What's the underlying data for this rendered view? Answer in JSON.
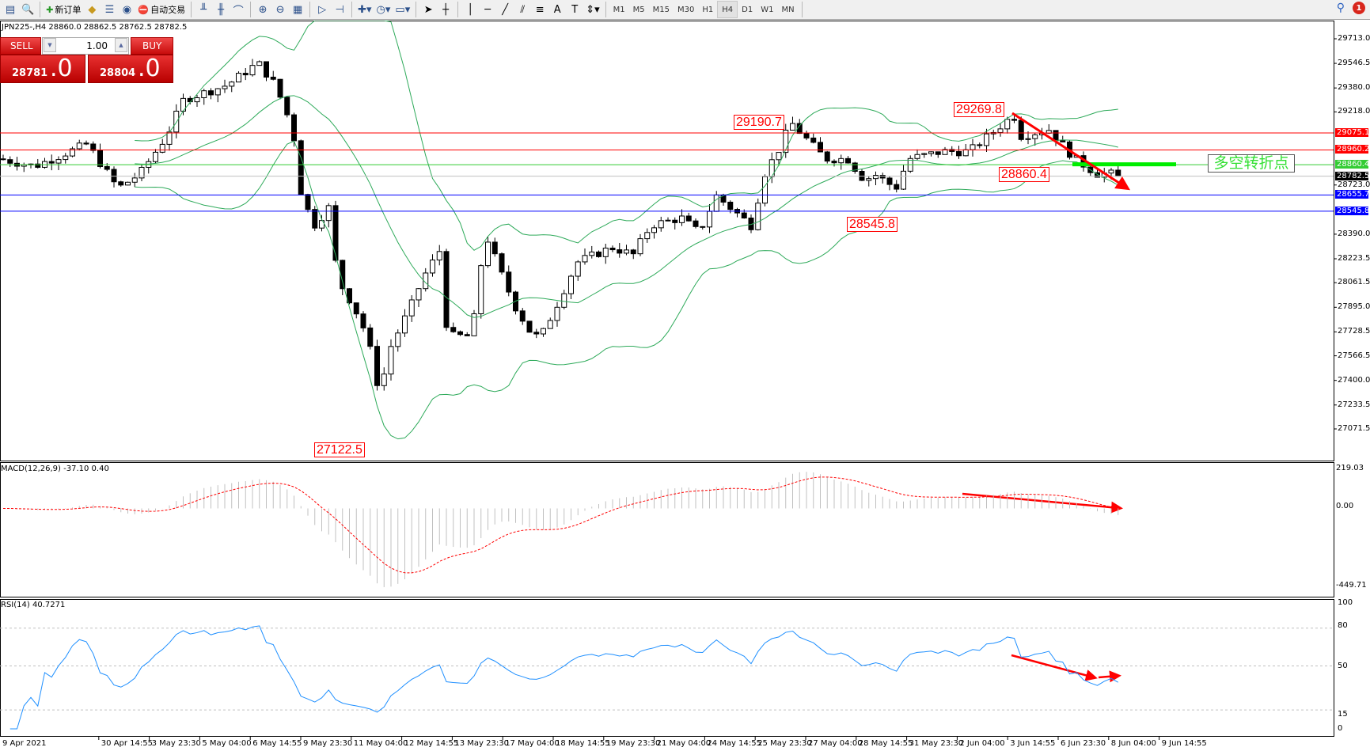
{
  "toolbar": {
    "new_order_label": "新订单",
    "auto_trade_label": "自动交易",
    "timeframes": [
      "M1",
      "M5",
      "M15",
      "M30",
      "H1",
      "H4",
      "D1",
      "W1",
      "MN"
    ],
    "active_timeframe": "H4",
    "notification_count": "1"
  },
  "chart_header": {
    "symbol_line": "JPN225-,H4  28860.0 28862.5 28762.5 28782.5"
  },
  "trade_panel": {
    "sell_label": "SELL",
    "buy_label": "BUY",
    "lot": "1.00",
    "sell_price_main": "28781",
    "sell_price_suffix": ".0",
    "buy_price_main": "28804",
    "buy_price_suffix": ".0"
  },
  "price_axis": {
    "ticks": [
      "29713.0",
      "29546.5",
      "29380.0",
      "29218.0",
      "28723.0",
      "28390.0",
      "28223.5",
      "28061.5",
      "27895.0",
      "27728.5",
      "27566.5",
      "27400.0",
      "27233.5",
      "27071.5"
    ],
    "range": [
      27071.5,
      29713.0
    ]
  },
  "levels": [
    {
      "price": "29075.1",
      "color": "#ff0000"
    },
    {
      "price": "28960.2",
      "color": "#ff0000"
    },
    {
      "price": "28860.4",
      "color": "#33cc33"
    },
    {
      "price": "28782.5",
      "color": "#000000"
    },
    {
      "price": "28655.7",
      "color": "#0000ff"
    },
    {
      "price": "28545.8",
      "color": "#0000ff"
    }
  ],
  "annotations": {
    "a1": "29190.7",
    "a2": "29269.8",
    "a3": "28860.4",
    "a4": "28545.8",
    "a5": "27122.5",
    "turn_point": "多空转折点"
  },
  "macd": {
    "label": "MACD(12,26,9) -37.10 0.40",
    "ticks": [
      "219.03",
      "0.00",
      "-449.71"
    ]
  },
  "rsi": {
    "label": "RSI(14) 40.7271",
    "ticks": [
      "100",
      "80",
      "50",
      "15",
      "0"
    ]
  },
  "time_axis": [
    "9 Apr 2021",
    "30 Apr 14:55",
    "3 May 23:30",
    "5 May 04:00",
    "6 May 14:55",
    "9 May 23:30",
    "11 May 04:00",
    "12 May 14:55",
    "13 May 23:30",
    "17 May 04:00",
    "18 May 14:55",
    "19 May 23:30",
    "21 May 04:00",
    "24 May 14:55",
    "25 May 23:30",
    "27 May 04:00",
    "28 May 14:55",
    "31 May 23:30",
    "2 Jun 04:00",
    "3 Jun 14:55",
    "6 Jun 23:30",
    "8 Jun 04:00",
    "9 Jun 14:55"
  ],
  "chart_data": {
    "type": "candlestick",
    "price_path": [
      [
        0,
        28900
      ],
      [
        44,
        28850
      ],
      [
        110,
        29000
      ],
      [
        149,
        28700
      ],
      [
        177,
        28800
      ],
      [
        210,
        29050
      ],
      [
        232,
        29300
      ],
      [
        287,
        29400
      ],
      [
        326,
        29550
      ],
      [
        348,
        29400
      ],
      [
        370,
        29100
      ],
      [
        381,
        28650
      ],
      [
        397,
        28450
      ],
      [
        420,
        28600
      ],
      [
        425,
        28100
      ],
      [
        447,
        27900
      ],
      [
        464,
        27700
      ],
      [
        480,
        27300
      ],
      [
        491,
        27600
      ],
      [
        519,
        27900
      ],
      [
        535,
        28100
      ],
      [
        558,
        28300
      ],
      [
        565,
        27700
      ],
      [
        596,
        27700
      ],
      [
        613,
        28400
      ],
      [
        635,
        28100
      ],
      [
        651,
        27900
      ],
      [
        673,
        27700
      ],
      [
        684,
        27700
      ],
      [
        707,
        27950
      ],
      [
        729,
        28200
      ],
      [
        773,
        28300
      ],
      [
        800,
        28250
      ],
      [
        822,
        28450
      ],
      [
        861,
        28500
      ],
      [
        883,
        28400
      ],
      [
        905,
        28650
      ],
      [
        949,
        28450
      ],
      [
        966,
        28800
      ],
      [
        988,
        29000
      ],
      [
        999,
        29150
      ],
      [
        1016,
        29050
      ],
      [
        1043,
        28900
      ],
      [
        1071,
        28900
      ],
      [
        1093,
        28750
      ],
      [
        1104,
        28800
      ],
      [
        1132,
        28700
      ],
      [
        1148,
        28900
      ],
      [
        1192,
        28950
      ],
      [
        1225,
        28950
      ],
      [
        1259,
        29100
      ],
      [
        1281,
        29200
      ],
      [
        1286,
        29050
      ],
      [
        1325,
        29100
      ],
      [
        1358,
        28900
      ],
      [
        1386,
        28800
      ],
      [
        1402,
        28800
      ],
      [
        1413,
        28782.5
      ]
    ]
  },
  "colors": {
    "bands": "#2eaa5a",
    "rsi": "#1e8fff",
    "macd_signal": "#ff0000",
    "macd_hist": "#c0c0c0",
    "arrow": "#ff0000"
  }
}
